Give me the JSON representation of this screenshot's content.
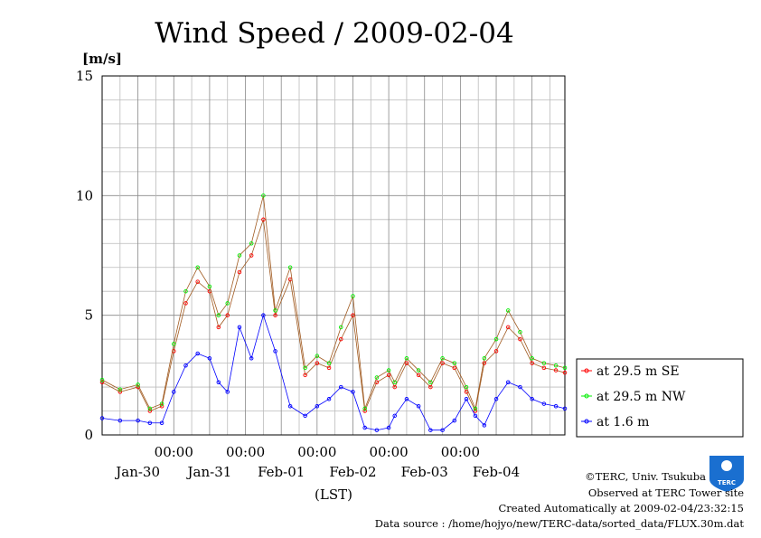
{
  "chart_data": {
    "type": "line",
    "title": "Wind Speed / 2009-02-04",
    "ylabel": "[m/s]",
    "xlabel": "(LST)",
    "ylim": [
      0,
      15
    ],
    "y_ticks": [
      0,
      5,
      10,
      15
    ],
    "x_range_days": [
      "2009-01-29 12:00",
      "2009-02-04 23:00"
    ],
    "x_tick_time_labels": [
      "00:00",
      "00:00",
      "00:00",
      "00:00",
      "00:00"
    ],
    "x_date_labels": [
      "Jan-30",
      "Jan-31",
      "Feb-01",
      "Feb-02",
      "Feb-03",
      "Feb-04"
    ],
    "grid": true,
    "legend_position": "right",
    "series": [
      {
        "name": "at 29.5 m SE",
        "color": "#ff0000",
        "x": [
          "01-29 12:00",
          "01-29 18:00",
          "01-30 00:00",
          "01-30 04:00",
          "01-30 08:00",
          "01-30 12:00",
          "01-30 16:00",
          "01-30 20:00",
          "01-31 00:00",
          "01-31 03:00",
          "01-31 06:00",
          "01-31 10:00",
          "01-31 14:00",
          "01-31 18:00",
          "01-31 22:00",
          "02-01 03:00",
          "02-01 08:00",
          "02-01 12:00",
          "02-01 16:00",
          "02-01 20:00",
          "02-02 00:00",
          "02-02 04:00",
          "02-02 08:00",
          "02-02 12:00",
          "02-02 14:00",
          "02-02 18:00",
          "02-02 22:00",
          "02-03 02:00",
          "02-03 06:00",
          "02-03 10:00",
          "02-03 14:00",
          "02-03 17:00",
          "02-03 20:00",
          "02-04 00:00",
          "02-04 04:00",
          "02-04 08:00",
          "02-04 12:00",
          "02-04 16:00",
          "02-04 20:00",
          "02-04 23:00"
        ],
        "y": [
          2.2,
          1.8,
          2.0,
          1.0,
          1.2,
          3.5,
          5.5,
          6.4,
          6.0,
          4.5,
          5.0,
          6.8,
          7.5,
          9.0,
          5.0,
          6.5,
          2.5,
          3.0,
          2.8,
          4.0,
          5.0,
          1.0,
          2.2,
          2.5,
          2.0,
          3.0,
          2.5,
          2.0,
          3.0,
          2.8,
          1.8,
          1.0,
          3.0,
          3.5,
          4.5,
          4.0,
          3.0,
          2.8,
          2.7,
          2.6
        ]
      },
      {
        "name": "at 29.5 m NW",
        "color": "#00ee00",
        "x": [
          "01-29 12:00",
          "01-29 18:00",
          "01-30 00:00",
          "01-30 04:00",
          "01-30 08:00",
          "01-30 12:00",
          "01-30 16:00",
          "01-30 20:00",
          "01-31 00:00",
          "01-31 03:00",
          "01-31 06:00",
          "01-31 10:00",
          "01-31 14:00",
          "01-31 18:00",
          "01-31 22:00",
          "02-01 03:00",
          "02-01 08:00",
          "02-01 12:00",
          "02-01 16:00",
          "02-01 20:00",
          "02-02 00:00",
          "02-02 04:00",
          "02-02 08:00",
          "02-02 12:00",
          "02-02 14:00",
          "02-02 18:00",
          "02-02 22:00",
          "02-03 02:00",
          "02-03 06:00",
          "02-03 10:00",
          "02-03 14:00",
          "02-03 17:00",
          "02-03 20:00",
          "02-04 00:00",
          "02-04 04:00",
          "02-04 08:00",
          "02-04 12:00",
          "02-04 16:00",
          "02-04 20:00",
          "02-04 23:00"
        ],
        "y": [
          2.3,
          1.9,
          2.1,
          1.1,
          1.3,
          3.8,
          6.0,
          7.0,
          6.2,
          5.0,
          5.5,
          7.5,
          8.0,
          10.0,
          5.2,
          7.0,
          2.8,
          3.3,
          3.0,
          4.5,
          5.8,
          1.1,
          2.4,
          2.7,
          2.2,
          3.2,
          2.7,
          2.2,
          3.2,
          3.0,
          2.0,
          1.1,
          3.2,
          4.0,
          5.2,
          4.3,
          3.2,
          3.0,
          2.9,
          2.8
        ]
      },
      {
        "name": "at 1.6 m",
        "color": "#0000ff",
        "x": [
          "01-29 12:00",
          "01-29 18:00",
          "01-30 00:00",
          "01-30 04:00",
          "01-30 08:00",
          "01-30 12:00",
          "01-30 16:00",
          "01-30 20:00",
          "01-31 00:00",
          "01-31 03:00",
          "01-31 06:00",
          "01-31 10:00",
          "01-31 14:00",
          "01-31 18:00",
          "01-31 22:00",
          "02-01 03:00",
          "02-01 08:00",
          "02-01 12:00",
          "02-01 16:00",
          "02-01 20:00",
          "02-02 00:00",
          "02-02 04:00",
          "02-02 08:00",
          "02-02 12:00",
          "02-02 14:00",
          "02-02 18:00",
          "02-02 22:00",
          "02-03 02:00",
          "02-03 06:00",
          "02-03 10:00",
          "02-03 14:00",
          "02-03 17:00",
          "02-03 20:00",
          "02-04 00:00",
          "02-04 04:00",
          "02-04 08:00",
          "02-04 12:00",
          "02-04 16:00",
          "02-04 20:00",
          "02-04 23:00"
        ],
        "y": [
          0.7,
          0.6,
          0.6,
          0.5,
          0.5,
          1.8,
          2.9,
          3.4,
          3.2,
          2.2,
          1.8,
          4.5,
          3.2,
          5.0,
          3.5,
          1.2,
          0.8,
          1.2,
          1.5,
          2.0,
          1.8,
          0.3,
          0.2,
          0.3,
          0.8,
          1.5,
          1.2,
          0.2,
          0.2,
          0.6,
          1.5,
          0.8,
          0.4,
          1.5,
          2.2,
          2.0,
          1.5,
          1.3,
          1.2,
          1.1
        ]
      }
    ]
  },
  "credits": {
    "copyright": "©TERC, Univ. Tsukuba",
    "observed": "Observed at TERC Tower site",
    "created": "Created Automatically at 2009-02-04/23:32:15",
    "source": "Data source : /home/hojyo/new/TERC-data/sorted_data/FLUX.30m.dat",
    "logo_text": "TERC"
  }
}
